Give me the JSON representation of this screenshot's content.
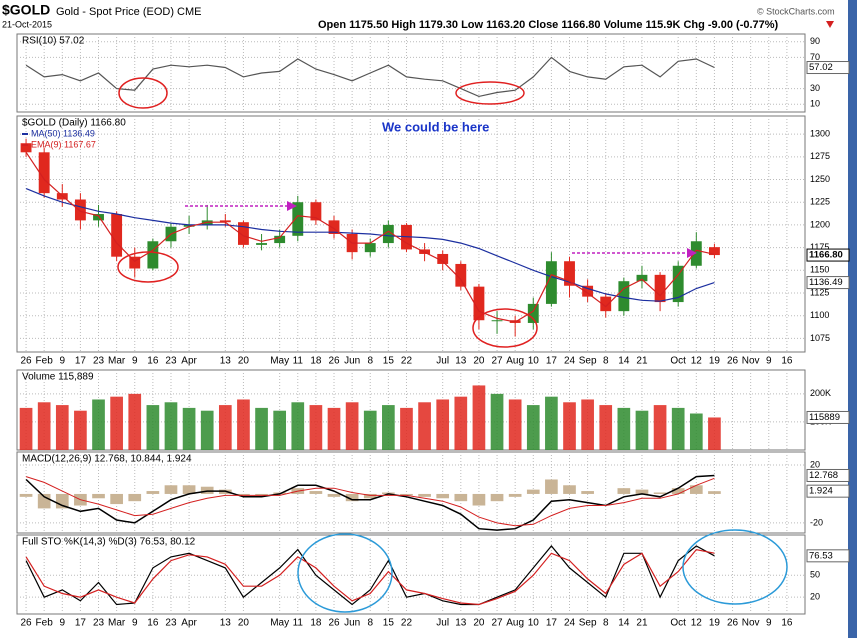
{
  "header": {
    "symbol": "$GOLD",
    "name": "Gold - Spot Price (EOD) CME",
    "date": "21-Oct-2015",
    "quote": "Open 1175.50  High 1179.30  Low 1163.20  Close 1166.80  Volume 115.9K  Chg -9.00 (-0.77%)",
    "credit": "© StockCharts.com"
  },
  "chart_data": [
    {
      "type": "line",
      "title": "RSI(10) 57.02",
      "xlim": [
        -0.5,
        43
      ],
      "ylim": [
        0,
        100
      ],
      "yticks": [
        10,
        30,
        70,
        90
      ],
      "grid": true,
      "series": [
        {
          "color": "#555555",
          "value_label": "57.02",
          "values": [
            60,
            45,
            48,
            40,
            50,
            30,
            28,
            55,
            60,
            58,
            60,
            57,
            45,
            50,
            52,
            68,
            55,
            48,
            40,
            50,
            60,
            45,
            42,
            40,
            30,
            20,
            25,
            28,
            45,
            70,
            52,
            45,
            42,
            58,
            60,
            45,
            65,
            68,
            57.02
          ]
        }
      ]
    },
    {
      "type": "candlestick",
      "title": "$GOLD (Daily) 1166.80",
      "close_label": "1166.80",
      "annotation": "We could be here",
      "xlim": [
        -0.5,
        43
      ],
      "ylim": [
        1060,
        1320
      ],
      "yticks": [
        1075,
        1100,
        1125,
        1150,
        1175,
        1200,
        1225,
        1250,
        1275,
        1300
      ],
      "grid": true,
      "up_color": "#2e8b2e",
      "down_color": "#e0281e",
      "open": [
        1290,
        1280,
        1235,
        1228,
        1205,
        1212,
        1165,
        1152,
        1182,
        1198,
        1200,
        1205,
        1203,
        1178,
        1180,
        1188,
        1225,
        1205,
        1190,
        1170,
        1180,
        1200,
        1173,
        1168,
        1157,
        1132,
        1095,
        1095,
        1092,
        1113,
        1160,
        1133,
        1121,
        1105,
        1138,
        1145,
        1115,
        1155,
        1175.5
      ],
      "high": [
        1295,
        1285,
        1245,
        1235,
        1222,
        1215,
        1175,
        1185,
        1202,
        1210,
        1222,
        1212,
        1205,
        1190,
        1195,
        1232,
        1228,
        1210,
        1195,
        1185,
        1205,
        1202,
        1180,
        1172,
        1160,
        1135,
        1105,
        1100,
        1120,
        1170,
        1165,
        1140,
        1125,
        1142,
        1155,
        1148,
        1160,
        1192,
        1179.3
      ],
      "low": [
        1275,
        1230,
        1220,
        1195,
        1198,
        1160,
        1142,
        1150,
        1175,
        1190,
        1195,
        1198,
        1175,
        1172,
        1175,
        1182,
        1200,
        1185,
        1162,
        1165,
        1175,
        1170,
        1160,
        1150,
        1128,
        1085,
        1080,
        1077,
        1085,
        1110,
        1120,
        1115,
        1098,
        1100,
        1130,
        1105,
        1110,
        1152,
        1163.2
      ],
      "close": [
        1280,
        1235,
        1228,
        1205,
        1212,
        1165,
        1152,
        1182,
        1198,
        1200,
        1205,
        1203,
        1178,
        1180,
        1188,
        1225,
        1205,
        1190,
        1170,
        1180,
        1200,
        1173,
        1168,
        1157,
        1132,
        1095,
        1095,
        1092,
        1113,
        1160,
        1133,
        1121,
        1105,
        1138,
        1145,
        1115,
        1155,
        1182,
        1166.8
      ],
      "series": [
        {
          "name": "MA(50) 1136.49",
          "color": "#1c2fa0",
          "value_label": "1136.49",
          "values": [
            1240,
            1232,
            1225,
            1220,
            1215,
            1212,
            1208,
            1205,
            1202,
            1200,
            1200,
            1200,
            1198,
            1195,
            1193,
            1192,
            1192,
            1192,
            1191,
            1190,
            1188,
            1187,
            1186,
            1184,
            1180,
            1174,
            1166,
            1158,
            1150,
            1143,
            1137,
            1130,
            1124,
            1120,
            1117,
            1116,
            1120,
            1130,
            1136.49
          ]
        },
        {
          "name": "EMA(9) 1167.67",
          "color": "#d42020",
          "values": [
            1280,
            1250,
            1232,
            1215,
            1210,
            1180,
            1160,
            1172,
            1190,
            1198,
            1203,
            1203,
            1188,
            1182,
            1186,
            1210,
            1208,
            1196,
            1180,
            1180,
            1193,
            1180,
            1170,
            1160,
            1140,
            1105,
            1097,
            1093,
            1105,
            1145,
            1138,
            1125,
            1110,
            1130,
            1140,
            1122,
            1145,
            1172,
            1167.67
          ]
        }
      ],
      "xticks": [
        {
          "value": 0,
          "label": "26"
        },
        {
          "value": 1,
          "label": "Feb"
        },
        {
          "value": 2,
          "label": "9"
        },
        {
          "value": 3,
          "label": "17"
        },
        {
          "value": 4,
          "label": "23"
        },
        {
          "value": 5,
          "label": "Mar"
        },
        {
          "value": 6,
          "label": "9"
        },
        {
          "value": 7,
          "label": "16"
        },
        {
          "value": 8,
          "label": "23"
        },
        {
          "value": 9,
          "label": "Apr"
        },
        {
          "value": 11,
          "label": "13"
        },
        {
          "value": 12,
          "label": "20"
        },
        {
          "value": 14,
          "label": "May"
        },
        {
          "value": 15,
          "label": "11"
        },
        {
          "value": 16,
          "label": "18"
        },
        {
          "value": 17,
          "label": "26"
        },
        {
          "value": 18,
          "label": "Jun"
        },
        {
          "value": 19,
          "label": "8"
        },
        {
          "value": 20,
          "label": "15"
        },
        {
          "value": 21,
          "label": "22"
        },
        {
          "value": 23,
          "label": "Jul"
        },
        {
          "value": 24,
          "label": "13"
        },
        {
          "value": 25,
          "label": "20"
        },
        {
          "value": 26,
          "label": "27"
        },
        {
          "value": 27,
          "label": "Aug"
        },
        {
          "value": 28,
          "label": "10"
        },
        {
          "value": 29,
          "label": "17"
        },
        {
          "value": 30,
          "label": "24"
        },
        {
          "value": 31,
          "label": "Sep"
        },
        {
          "value": 32,
          "label": "8"
        },
        {
          "value": 33,
          "label": "14"
        },
        {
          "value": 34,
          "label": "21"
        },
        {
          "value": 36,
          "label": "Oct"
        },
        {
          "value": 37,
          "label": "12"
        },
        {
          "value": 38,
          "label": "19"
        },
        {
          "value": 39,
          "label": "26"
        },
        {
          "value": 40,
          "label": "Nov"
        },
        {
          "value": 41,
          "label": "9"
        },
        {
          "value": 42,
          "label": "16"
        }
      ]
    },
    {
      "type": "bar",
      "title": "Volume 115,889",
      "value_label": "115889",
      "xlim": [
        -0.5,
        43
      ],
      "ylim": [
        0,
        285000
      ],
      "yticks": [
        {
          "value": 100000,
          "label": "100K"
        },
        {
          "value": 200000,
          "label": "200K"
        }
      ],
      "grid": true,
      "values": [
        150000,
        170000,
        160000,
        140000,
        180000,
        190000,
        200000,
        160000,
        170000,
        150000,
        140000,
        160000,
        180000,
        150000,
        140000,
        170000,
        160000,
        150000,
        170000,
        140000,
        160000,
        150000,
        170000,
        180000,
        190000,
        230000,
        200000,
        180000,
        160000,
        190000,
        170000,
        180000,
        160000,
        150000,
        140000,
        160000,
        150000,
        130000,
        115889
      ]
    },
    {
      "type": "macd",
      "title": "MACD(12,26,9) 12.768, 10.844, 1.924",
      "xlim": [
        -0.5,
        43
      ],
      "ylim": [
        -27,
        29
      ],
      "yticks": [
        -20,
        20
      ],
      "grid": true,
      "histogram_color": "#c9b496",
      "histogram_label": "1.924",
      "histogram": [
        -2,
        -10,
        -10,
        -8,
        -3,
        -7,
        -5,
        2,
        6,
        6,
        5,
        3,
        -1,
        -1,
        1,
        4,
        2,
        -2,
        -5,
        -3,
        1,
        -1,
        -2,
        -3,
        -5,
        -8,
        -5,
        -2,
        3,
        10,
        6,
        2,
        0,
        4,
        3,
        1,
        4,
        6,
        1.924
      ],
      "series": [
        {
          "color": "#000000",
          "value_label": "12.768",
          "values": [
            10,
            -2,
            -8,
            -12,
            -10,
            -18,
            -20,
            -12,
            -4,
            0,
            2,
            2,
            -2,
            -2,
            0,
            6,
            6,
            2,
            -4,
            -4,
            0,
            -2,
            -5,
            -8,
            -14,
            -24,
            -25,
            -24,
            -18,
            -5,
            -4,
            -6,
            -8,
            -2,
            0,
            -2,
            4,
            12,
            12.768
          ]
        },
        {
          "color": "#d42020",
          "values": [
            12,
            8,
            2,
            -4,
            -7,
            -11,
            -15,
            -14,
            -10,
            -6,
            -3,
            -1,
            -1,
            -1,
            -1,
            2,
            4,
            4,
            1,
            -1,
            -1,
            -1,
            -3,
            -5,
            -9,
            -16,
            -20,
            -22,
            -21,
            -15,
            -10,
            -8,
            -8,
            -6,
            -3,
            -3,
            0,
            6,
            10.844
          ]
        }
      ]
    },
    {
      "type": "line",
      "title": "Full STO %K(14,3) %D(3) 76.53, 80.12",
      "xlim": [
        -0.5,
        43
      ],
      "ylim": [
        -3,
        105
      ],
      "yticks": [
        20,
        50
      ],
      "grid": true,
      "series": [
        {
          "color": "#000000",
          "value_label": "76.53",
          "values": [
            70,
            20,
            30,
            15,
            40,
            10,
            12,
            60,
            75,
            80,
            70,
            60,
            20,
            40,
            60,
            85,
            50,
            30,
            10,
            30,
            70,
            20,
            25,
            15,
            10,
            10,
            20,
            30,
            60,
            90,
            60,
            40,
            20,
            80,
            80,
            20,
            70,
            90,
            76.53
          ]
        },
        {
          "color": "#d42020",
          "values": [
            75,
            35,
            25,
            20,
            30,
            20,
            12,
            45,
            70,
            78,
            75,
            65,
            35,
            35,
            50,
            75,
            60,
            35,
            15,
            25,
            55,
            30,
            25,
            18,
            12,
            10,
            18,
            28,
            50,
            80,
            70,
            45,
            25,
            65,
            80,
            35,
            55,
            85,
            80.12
          ]
        }
      ],
      "xticks": [
        {
          "value": 0,
          "label": "26"
        },
        {
          "value": 1,
          "label": "Feb"
        },
        {
          "value": 2,
          "label": "9"
        },
        {
          "value": 3,
          "label": "17"
        },
        {
          "value": 4,
          "label": "23"
        },
        {
          "value": 5,
          "label": "Mar"
        },
        {
          "value": 6,
          "label": "9"
        },
        {
          "value": 7,
          "label": "16"
        },
        {
          "value": 8,
          "label": "23"
        },
        {
          "value": 9,
          "label": "Apr"
        },
        {
          "value": 11,
          "label": "13"
        },
        {
          "value": 12,
          "label": "20"
        },
        {
          "value": 14,
          "label": "May"
        },
        {
          "value": 15,
          "label": "11"
        },
        {
          "value": 16,
          "label": "18"
        },
        {
          "value": 17,
          "label": "26"
        },
        {
          "value": 18,
          "label": "Jun"
        },
        {
          "value": 19,
          "label": "8"
        },
        {
          "value": 20,
          "label": "15"
        },
        {
          "value": 21,
          "label": "22"
        },
        {
          "value": 23,
          "label": "Jul"
        },
        {
          "value": 24,
          "label": "13"
        },
        {
          "value": 25,
          "label": "20"
        },
        {
          "value": 26,
          "label": "27"
        },
        {
          "value": 27,
          "label": "Aug"
        },
        {
          "value": 28,
          "label": "10"
        },
        {
          "value": 29,
          "label": "17"
        },
        {
          "value": 30,
          "label": "24"
        },
        {
          "value": 31,
          "label": "Sep"
        },
        {
          "value": 32,
          "label": "8"
        },
        {
          "value": 33,
          "label": "14"
        },
        {
          "value": 34,
          "label": "21"
        },
        {
          "value": 36,
          "label": "Oct"
        },
        {
          "value": 37,
          "label": "12"
        },
        {
          "value": 38,
          "label": "19"
        },
        {
          "value": 39,
          "label": "26"
        },
        {
          "value": 40,
          "label": "Nov"
        },
        {
          "value": 41,
          "label": "9"
        },
        {
          "value": 42,
          "label": "16"
        }
      ]
    }
  ]
}
